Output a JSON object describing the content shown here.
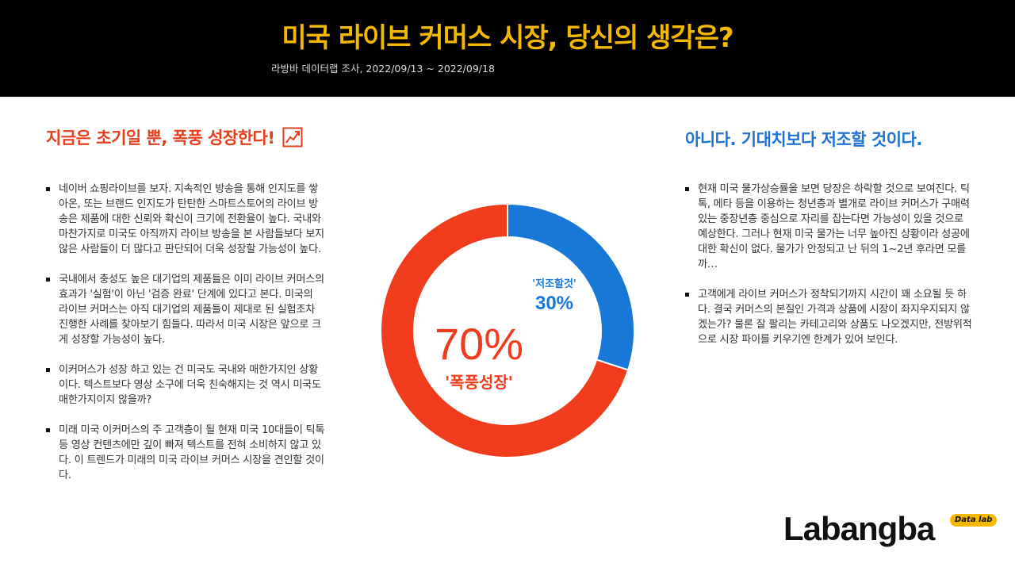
{
  "header": {
    "title": "미국 라이브 커머스 시장, 당신의 생각은?",
    "subtitle": "라방바 데이터랩 조사, 2022/09/13  ~ 2022/09/18"
  },
  "left": {
    "heading": "지금은 초기일 뿐, 폭풍 성장한다!",
    "bullets": [
      "네이버 쇼핑라이브를 보자. 지속적인 방송을 통해 인지도를 쌓아온, 또는 브랜드 인지도가 탄탄한 스마트스토어의 라이브 방송은 제품에 대한 신뢰와 확신이 크기에 전환율이 높다. 국내와 마찬가지로 미국도 아직까지 라이브 방송을 본 사람들보다 보지않은 사람들이 더 많다고 판단되어 더욱 성장할 가능성이 높다.",
      "국내에서 충성도 높은 대기업의 제품들은 이미 라이브 커머스의 효과가 '실험'이 아닌 '검증 완료' 단계에 있다고 본다. 미국의 라이브 커머스는 아직 대기업의 제품들이 제대로 된 실험조차 진행한 사례를 찾아보기 힘들다. 따라서 미국 시장은 앞으로 크게 성장할 가능성이 높다.",
      "이커머스가 성장 하고 있는 건 미국도 국내와 매한가지인 상황이다. 텍스트보다 영상 소구에 더욱 친숙해지는 것 역시 미국도 매한가지이지 않을까?",
      "미래 미국 이커머스의 주 고객층이 될 현재 미국 10대들이 틱톡 등 영상 컨텐츠에만 깊이 빠져 텍스트를 전혀 소비하지 않고 있다. 이 트렌드가 미래의 미국 라이브 커머스 시장을 견인할 것이다."
    ]
  },
  "right": {
    "heading": "아니다. 기대치보다 저조할 것이다.",
    "bullets": [
      "현재 미국 물가상승률을 보면 당장은 하락할 것으로 보여진다. 틱톡, 메타 등을 이용하는 청년층과 별개로 라이브 커머스가 구매력 있는 중장년층 중심으로 자리를 잡는다면 가능성이 있을 것으로 예상한다. 그러나 현재 미국 물가는 너무 높아진 상황이라 성공에 대한 확신이 없다. 물가가 안정되고 난 뒤의 1~2년 후라면 모를까…",
      "고객에게 라이브 커머스가 정착되기까지 시간이 꽤 소요될 듯 하다. 결국 커머스의 본질인 가격과 상품에 시장이 좌지우지되지 않겠는가? 물론 잘 팔리는 카테고리와 상품도 나오겠지만, 전방위적으로 시장 파이를 키우기엔 한계가 있어 보인다."
    ]
  },
  "chart_data": {
    "type": "pie",
    "donut": true,
    "categories": [
      "'폭풍성장'",
      "'저조할것'"
    ],
    "values": [
      70,
      30
    ],
    "value_labels": [
      "70%",
      "30%"
    ],
    "colors": [
      "#f03c1c",
      "#1878d8"
    ]
  },
  "brand": {
    "logo": "Labangba",
    "tag": "Data lab"
  },
  "icons": {
    "left_heading_icon": "trend-chart-icon"
  }
}
